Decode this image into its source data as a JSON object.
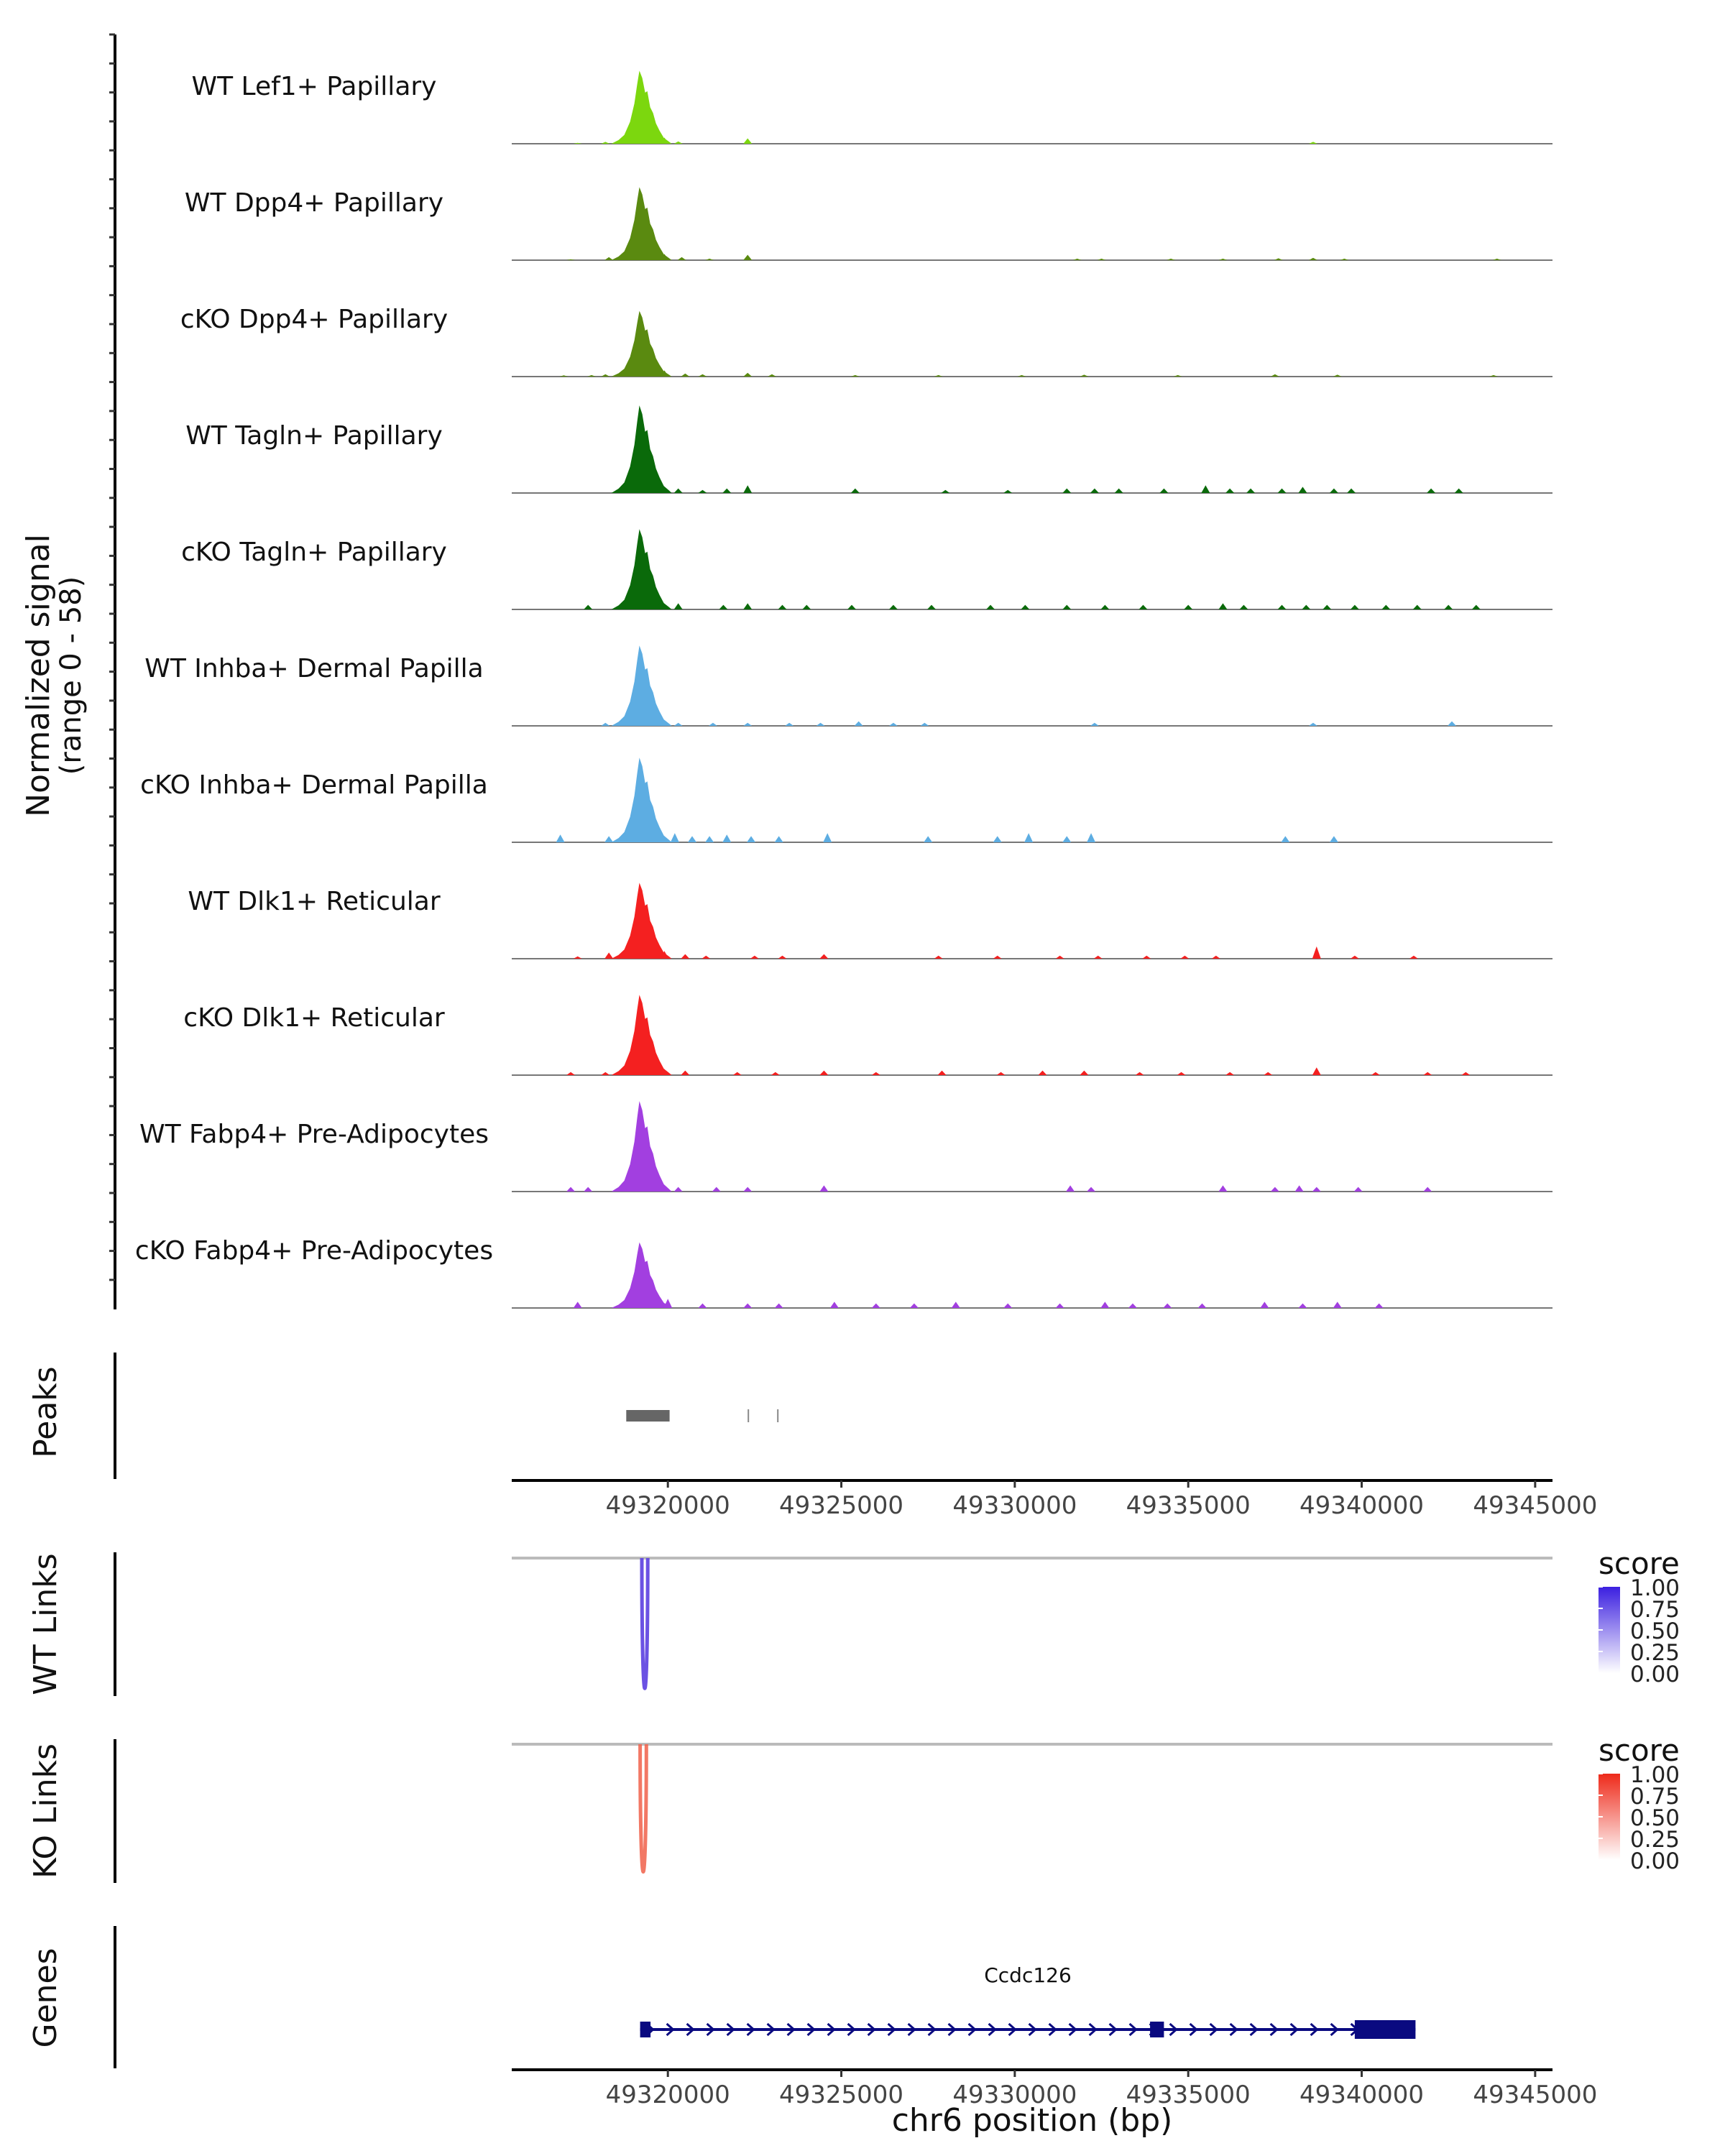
{
  "chart_data": {
    "type": "area",
    "title": "",
    "region": "chr6:49315500-49345500",
    "signal": {
      "ylabel_line1": "Normalized signal",
      "ylabel_line2": "(range 0 - 58)",
      "ylim": [
        0,
        58
      ],
      "tracks": [
        {
          "name": "WT Lef1+ Papillary",
          "color": "#7CD70E",
          "peak": 50,
          "small": [
            [
              49317400,
              0.6
            ],
            [
              49318200,
              1.2
            ],
            [
              49319900,
              4
            ],
            [
              49320300,
              1.5
            ],
            [
              49322300,
              3.5
            ],
            [
              49338600,
              1.2
            ]
          ]
        },
        {
          "name": "WT Dpp4+ Papillary",
          "color": "#5A8A10",
          "peak": 50,
          "small": [
            [
              49317200,
              0.6
            ],
            [
              49318300,
              2
            ],
            [
              49319900,
              4
            ],
            [
              49320400,
              2
            ],
            [
              49321200,
              1
            ],
            [
              49322300,
              3.5
            ],
            [
              49331800,
              1
            ],
            [
              49332500,
              1
            ],
            [
              49334500,
              1
            ],
            [
              49336000,
              1
            ],
            [
              49337600,
              1.2
            ],
            [
              49338600,
              1.5
            ],
            [
              49339500,
              1
            ],
            [
              49343900,
              1
            ]
          ]
        },
        {
          "name": "cKO Dpp4+ Papillary",
          "color": "#5A8A10",
          "peak": 45,
          "small": [
            [
              49317000,
              0.8
            ],
            [
              49317800,
              1
            ],
            [
              49318200,
              1.5
            ],
            [
              49319900,
              4
            ],
            [
              49320500,
              2
            ],
            [
              49321000,
              1.5
            ],
            [
              49322300,
              2.5
            ],
            [
              49323000,
              1.5
            ],
            [
              49325400,
              1
            ],
            [
              49327800,
              1
            ],
            [
              49330200,
              1
            ],
            [
              49332000,
              1.2
            ],
            [
              49334700,
              1
            ],
            [
              49337500,
              1.5
            ],
            [
              49339300,
              1.2
            ],
            [
              49343800,
              1
            ]
          ]
        },
        {
          "name": "WT Tagln+ Papillary",
          "color": "#0A6A0A",
          "peak": 60,
          "small": [
            [
              49320300,
              3
            ],
            [
              49321000,
              2
            ],
            [
              49321700,
              3
            ],
            [
              49322300,
              5
            ],
            [
              49325400,
              3
            ],
            [
              49328000,
              2
            ],
            [
              49329800,
              2
            ],
            [
              49331500,
              3
            ],
            [
              49332300,
              3
            ],
            [
              49333000,
              3
            ],
            [
              49334300,
              3
            ],
            [
              49335500,
              5
            ],
            [
              49336200,
              3
            ],
            [
              49336800,
              3
            ],
            [
              49337700,
              3
            ],
            [
              49338300,
              4
            ],
            [
              49339200,
              3
            ],
            [
              49339700,
              3
            ],
            [
              49342000,
              3
            ],
            [
              49342800,
              3
            ]
          ]
        },
        {
          "name": "cKO Tagln+ Papillary",
          "color": "#0A6A0A",
          "peak": 55,
          "small": [
            [
              49317700,
              3
            ],
            [
              49318700,
              3
            ],
            [
              49319800,
              6
            ],
            [
              49320300,
              4
            ],
            [
              49321600,
              3
            ],
            [
              49322300,
              4
            ],
            [
              49323300,
              3
            ],
            [
              49324000,
              3
            ],
            [
              49325300,
              3
            ],
            [
              49326500,
              3
            ],
            [
              49327600,
              3
            ],
            [
              49329300,
              3
            ],
            [
              49330300,
              3
            ],
            [
              49331500,
              3
            ],
            [
              49332600,
              3
            ],
            [
              49333700,
              3
            ],
            [
              49335000,
              3
            ],
            [
              49336000,
              4
            ],
            [
              49336600,
              3
            ],
            [
              49337700,
              3
            ],
            [
              49338400,
              3
            ],
            [
              49339000,
              3
            ],
            [
              49339800,
              3
            ],
            [
              49340700,
              3
            ],
            [
              49341600,
              3
            ],
            [
              49342500,
              3
            ],
            [
              49343300,
              3
            ]
          ]
        },
        {
          "name": "WT Inhba+ Dermal Papilla",
          "color": "#5DADE2",
          "peak": 55,
          "small": [
            [
              49318200,
              2
            ],
            [
              49319900,
              3
            ],
            [
              49320300,
              2
            ],
            [
              49321300,
              2
            ],
            [
              49322300,
              2
            ],
            [
              49323500,
              2
            ],
            [
              49324400,
              2
            ],
            [
              49325500,
              3
            ],
            [
              49326500,
              2
            ],
            [
              49327400,
              2
            ],
            [
              49332300,
              2
            ],
            [
              49338600,
              2
            ],
            [
              49342600,
              3
            ]
          ]
        },
        {
          "name": "cKO Inhba+ Dermal Papilla",
          "color": "#5DADE2",
          "peak": 58,
          "small": [
            [
              49316900,
              5
            ],
            [
              49318300,
              4
            ],
            [
              49320200,
              6
            ],
            [
              49320700,
              4
            ],
            [
              49321200,
              4
            ],
            [
              49321700,
              5
            ],
            [
              49322400,
              4
            ],
            [
              49323200,
              4
            ],
            [
              49324600,
              6
            ],
            [
              49327500,
              4
            ],
            [
              49329500,
              4
            ],
            [
              49330400,
              6
            ],
            [
              49331500,
              4
            ],
            [
              49332200,
              6
            ],
            [
              49337800,
              4
            ],
            [
              49339200,
              4
            ]
          ]
        },
        {
          "name": "WT Dlk1+ Reticular",
          "color": "#F42020",
          "peak": 52,
          "small": [
            [
              49317400,
              1.5
            ],
            [
              49318300,
              4
            ],
            [
              49319900,
              5
            ],
            [
              49320500,
              3
            ],
            [
              49321100,
              2
            ],
            [
              49322500,
              2
            ],
            [
              49323300,
              2
            ],
            [
              49324500,
              3
            ],
            [
              49327800,
              2
            ],
            [
              49329500,
              2
            ],
            [
              49331300,
              2
            ],
            [
              49332400,
              2
            ],
            [
              49333800,
              2
            ],
            [
              49334900,
              2
            ],
            [
              49335800,
              2
            ],
            [
              49338700,
              8
            ],
            [
              49339800,
              2
            ],
            [
              49341500,
              2
            ]
          ]
        },
        {
          "name": "cKO Dlk1+ Reticular",
          "color": "#F42020",
          "peak": 55,
          "small": [
            [
              49317200,
              2
            ],
            [
              49318200,
              2
            ],
            [
              49319900,
              4
            ],
            [
              49320500,
              3
            ],
            [
              49322000,
              2
            ],
            [
              49323100,
              2
            ],
            [
              49324500,
              3
            ],
            [
              49326000,
              2
            ],
            [
              49327900,
              3
            ],
            [
              49329600,
              2
            ],
            [
              49330800,
              3
            ],
            [
              49332000,
              3
            ],
            [
              49333600,
              2
            ],
            [
              49334800,
              2
            ],
            [
              49336200,
              2
            ],
            [
              49337300,
              2
            ],
            [
              49338700,
              5
            ],
            [
              49340400,
              2
            ],
            [
              49341900,
              2
            ],
            [
              49343000,
              2
            ]
          ]
        },
        {
          "name": "WT Fabp4+ Pre-Adipocytes",
          "color": "#A23FE0",
          "peak": 62,
          "small": [
            [
              49317200,
              3
            ],
            [
              49317700,
              3
            ],
            [
              49318700,
              6
            ],
            [
              49320300,
              3
            ],
            [
              49321400,
              3
            ],
            [
              49322300,
              3
            ],
            [
              49324500,
              4
            ],
            [
              49331600,
              4
            ],
            [
              49332200,
              3
            ],
            [
              49336000,
              4
            ],
            [
              49337500,
              3
            ],
            [
              49338200,
              4
            ],
            [
              49338700,
              3
            ],
            [
              49339900,
              3
            ],
            [
              49341900,
              3
            ]
          ]
        },
        {
          "name": "cKO Fabp4+ Pre-Adipocytes",
          "color": "#A23FE0",
          "peak": 45,
          "small": [
            [
              49317400,
              4
            ],
            [
              49318700,
              3
            ],
            [
              49320000,
              6
            ],
            [
              49321000,
              3
            ],
            [
              49322300,
              3
            ],
            [
              49323200,
              3
            ],
            [
              49324800,
              4
            ],
            [
              49326000,
              3
            ],
            [
              49327100,
              3
            ],
            [
              49328300,
              4
            ],
            [
              49329800,
              3
            ],
            [
              49331300,
              3
            ],
            [
              49332600,
              4
            ],
            [
              49333400,
              3
            ],
            [
              49334400,
              3
            ],
            [
              49335400,
              3
            ],
            [
              49337200,
              4
            ],
            [
              49338300,
              3
            ],
            [
              49339300,
              4
            ],
            [
              49340500,
              3
            ]
          ]
        }
      ]
    },
    "peaks": {
      "label": "Peaks",
      "regions": [
        [
          49318800,
          49320050
        ],
        [
          49322300,
          49322340
        ],
        [
          49323150,
          49323190
        ]
      ]
    },
    "x_axis": {
      "xlim": [
        49315500,
        49345500
      ],
      "ticks": [
        49320000,
        49325000,
        49330000,
        49335000,
        49340000,
        49345000
      ],
      "tick_labels": [
        "49320000",
        "49325000",
        "49330000",
        "49335000",
        "49340000",
        "49345000"
      ],
      "xlabel": "chr6 position (bp)"
    },
    "links": [
      {
        "label": "WT Links",
        "color": "#5B3FE0",
        "start": 49319250,
        "end": 49319420,
        "score": 0.9
      },
      {
        "label": "KO Links",
        "color": "#F0604A",
        "start": 49319200,
        "end": 49319380,
        "score": 0.85
      }
    ],
    "legends": [
      {
        "title": "score",
        "labels": [
          "1.00",
          "0.75",
          "0.50",
          "0.25",
          "0.00"
        ],
        "high_color": "#3B1FE0",
        "low_color": "#FFFFFF"
      },
      {
        "title": "score",
        "labels": [
          "1.00",
          "0.75",
          "0.50",
          "0.25",
          "0.00"
        ],
        "high_color": "#EE2A1A",
        "low_color": "#FFFFFF"
      }
    ],
    "genes": {
      "label": "Genes",
      "color": "#0A0A80",
      "gene": {
        "name": "Ccdc126",
        "start": 49319200,
        "end": 49341550,
        "strand": "+",
        "exons": [
          [
            49319200,
            49319500
          ],
          [
            49333900,
            49334300
          ],
          [
            49339800,
            49341550
          ]
        ]
      }
    }
  }
}
